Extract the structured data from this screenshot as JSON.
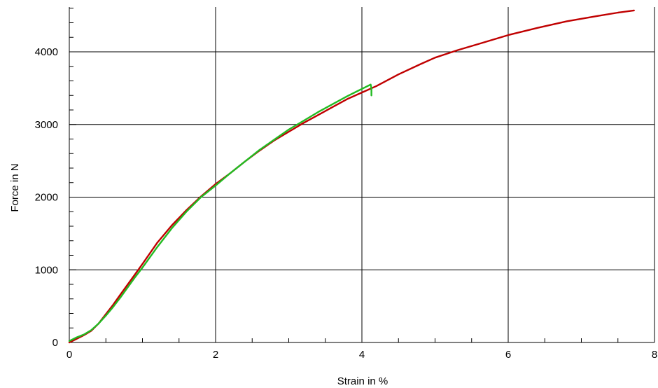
{
  "chart_data": {
    "type": "line",
    "title": "",
    "xlabel": "Strain in %",
    "ylabel": "Force in N",
    "xlim": [
      0,
      8
    ],
    "ylim": [
      0,
      4600
    ],
    "x_ticks": [
      0,
      2,
      4,
      6,
      8
    ],
    "y_ticks": [
      0,
      1000,
      2000,
      3000,
      4000
    ],
    "x_tick_labels": [
      "0",
      "2",
      "4",
      "6",
      "8"
    ],
    "y_tick_labels": [
      "0",
      "1000",
      "2000",
      "3000",
      "4000"
    ],
    "grid": true,
    "series": [
      {
        "color": "#c00000",
        "x": [
          0.0,
          0.1,
          0.2,
          0.3,
          0.4,
          0.5,
          0.6,
          0.7,
          0.8,
          0.9,
          1.0,
          1.2,
          1.4,
          1.6,
          1.8,
          2.0,
          2.2,
          2.4,
          2.6,
          2.8,
          3.0,
          3.2,
          3.4,
          3.6,
          3.8,
          4.0,
          4.2,
          4.5,
          4.8,
          5.0,
          5.3,
          5.6,
          6.0,
          6.4,
          6.8,
          7.2,
          7.5,
          7.72
        ],
        "y": [
          0,
          50,
          100,
          160,
          260,
          390,
          520,
          660,
          800,
          940,
          1080,
          1370,
          1610,
          1820,
          2010,
          2180,
          2330,
          2490,
          2640,
          2780,
          2900,
          3020,
          3130,
          3240,
          3350,
          3440,
          3530,
          3690,
          3830,
          3920,
          4020,
          4110,
          4230,
          4330,
          4420,
          4490,
          4540,
          4570
        ]
      },
      {
        "color": "#22bb22",
        "x": [
          0.0,
          0.1,
          0.2,
          0.3,
          0.4,
          0.5,
          0.6,
          0.7,
          0.8,
          0.9,
          1.0,
          1.2,
          1.4,
          1.6,
          1.8,
          2.0,
          2.2,
          2.4,
          2.6,
          2.8,
          3.0,
          3.2,
          3.4,
          3.6,
          3.8,
          4.0,
          4.12,
          4.13,
          4.13
        ],
        "y": [
          20,
          70,
          110,
          170,
          260,
          370,
          490,
          620,
          760,
          900,
          1030,
          1310,
          1570,
          1800,
          2000,
          2160,
          2330,
          2490,
          2650,
          2790,
          2930,
          3050,
          3170,
          3280,
          3390,
          3490,
          3550,
          3500,
          3400
        ]
      }
    ]
  }
}
